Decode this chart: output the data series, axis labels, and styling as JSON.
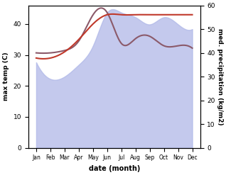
{
  "months": [
    "Jan",
    "Feb",
    "Mar",
    "Apr",
    "May",
    "Jun",
    "Jul",
    "Aug",
    "Sep",
    "Oct",
    "Nov",
    "Dec"
  ],
  "max_temp": [
    29,
    29,
    31,
    35,
    40,
    43,
    43,
    43,
    43,
    43,
    43,
    43
  ],
  "precip_fill": [
    36,
    29,
    30,
    35,
    43,
    57,
    57,
    55,
    52,
    55,
    52,
    50
  ],
  "precip_line": [
    40,
    40,
    41,
    45,
    56,
    57,
    44,
    46,
    47,
    43,
    43,
    42
  ],
  "temp_color": "#c0392b",
  "precip_fill_color": "#b0b8e8",
  "precip_line_color": "#8b5a6a",
  "left_ylabel": "max temp (C)",
  "right_ylabel": "med. precipitation (kg/m2)",
  "xlabel": "date (month)",
  "left_ylim": [
    0,
    46
  ],
  "right_ylim": [
    0,
    60
  ],
  "left_yticks": [
    0,
    10,
    20,
    30,
    40
  ],
  "right_yticks": [
    0,
    10,
    20,
    30,
    40,
    50,
    60
  ]
}
